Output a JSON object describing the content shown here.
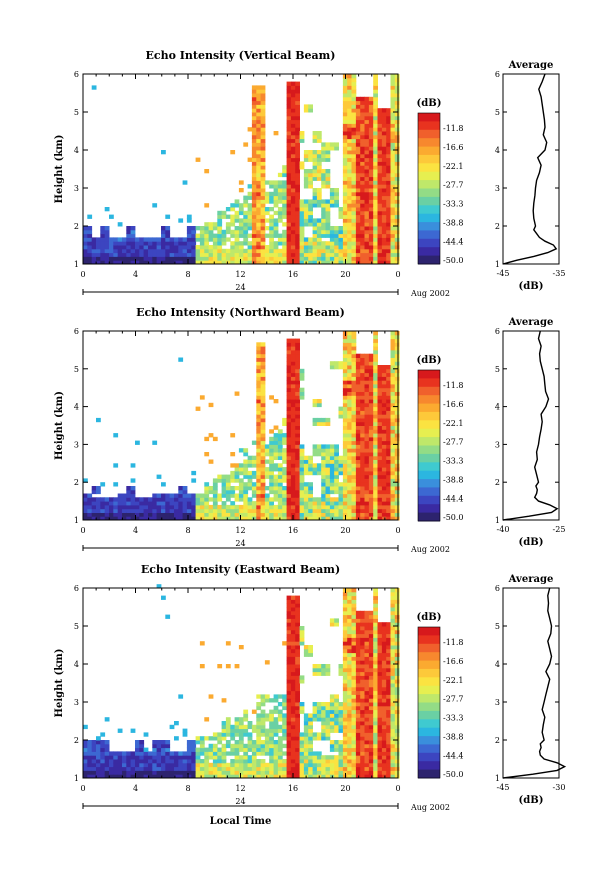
{
  "colorbar": {
    "unit": "(dB)",
    "labels": [
      "-11.8",
      "-16.6",
      "-22.1",
      "-27.7",
      "-33.3",
      "-38.8",
      "-44.4",
      "-50.0"
    ],
    "colors": [
      "#d7191c",
      "#e8331f",
      "#f0602c",
      "#f7882e",
      "#fbaa30",
      "#fdc93a",
      "#fbe341",
      "#e6ef50",
      "#bfe86a",
      "#93dc86",
      "#6ad0a4",
      "#3fcad0",
      "#2bb6e0",
      "#3a8fdc",
      "#3c68d2",
      "#3c45c0",
      "#3a2aa2",
      "#2d236e"
    ]
  },
  "footer": {
    "date": "Aug 2002",
    "xlabel": "Local Time"
  },
  "chart_data": [
    {
      "type": "heatmap",
      "title": "Echo Intensity (Vertical Beam)",
      "xlabel": "",
      "ylabel": "Height (km)",
      "xlim": [
        0,
        24
      ],
      "ylim": [
        1,
        6
      ],
      "xticks": [
        "0",
        "4",
        "8",
        "12",
        "16",
        "20",
        "0"
      ],
      "yticks": [
        "1",
        "2",
        "3",
        "4",
        "5",
        "6"
      ],
      "day_label": "24",
      "intensity_range_db": [
        -50.0,
        -11.8
      ],
      "profile": {
        "title": "Average",
        "xlabel": "(dB)",
        "xlim": [
          -45,
          -35
        ],
        "xticks": [
          "-45",
          "-35"
        ],
        "height": [
          1.0,
          1.1,
          1.2,
          1.3,
          1.4,
          1.5,
          1.6,
          1.7,
          1.8,
          1.9,
          2.0,
          2.2,
          2.4,
          2.6,
          2.8,
          3.0,
          3.2,
          3.4,
          3.6,
          3.8,
          4.0,
          4.2,
          4.4,
          4.6,
          4.8,
          5.0,
          5.2,
          5.4,
          5.6,
          5.8,
          6.0
        ],
        "value": [
          -45,
          -42.5,
          -39.5,
          -37,
          -35.5,
          -36,
          -37.5,
          -38.5,
          -39,
          -39.5,
          -39.2,
          -39.5,
          -39.6,
          -39.5,
          -39.3,
          -39.2,
          -39,
          -38.5,
          -38.2,
          -38.8,
          -37.5,
          -37.2,
          -37.8,
          -37.5,
          -37.6,
          -37.8,
          -38,
          -38.2,
          -38.6,
          -38,
          -37.5
        ]
      }
    },
    {
      "type": "heatmap",
      "title": "Echo Intensity (Northward Beam)",
      "xlabel": "",
      "ylabel": "Height (km)",
      "xlim": [
        0,
        24
      ],
      "ylim": [
        1,
        6
      ],
      "xticks": [
        "0",
        "4",
        "8",
        "12",
        "16",
        "20",
        "0"
      ],
      "yticks": [
        "1",
        "2",
        "3",
        "4",
        "5",
        "6"
      ],
      "day_label": "24",
      "intensity_range_db": [
        -50.0,
        -11.8
      ],
      "profile": {
        "title": "Average",
        "xlabel": "(dB)",
        "xlim": [
          -40,
          -25
        ],
        "xticks": [
          "-40",
          "-25"
        ],
        "height": [
          1.0,
          1.1,
          1.2,
          1.3,
          1.4,
          1.5,
          1.6,
          1.7,
          1.8,
          1.9,
          2.0,
          2.2,
          2.4,
          2.6,
          2.8,
          3.0,
          3.2,
          3.4,
          3.6,
          3.8,
          4.0,
          4.2,
          4.4,
          4.6,
          4.8,
          5.0,
          5.2,
          5.4,
          5.6,
          5.8,
          6.0
        ],
        "value": [
          -40,
          -33,
          -27,
          -25.5,
          -27.5,
          -30.5,
          -31.5,
          -31,
          -30.8,
          -31.2,
          -30.5,
          -31,
          -31.5,
          -30.8,
          -31,
          -30.5,
          -30.2,
          -29.8,
          -29.5,
          -29.8,
          -28.5,
          -27.8,
          -28.6,
          -28.8,
          -29,
          -29.5,
          -30,
          -30.2,
          -29.8,
          -30.5,
          -30
        ]
      }
    },
    {
      "type": "heatmap",
      "title": "Echo Intensity (Eastward Beam)",
      "xlabel": "Local Time",
      "ylabel": "Height (km)",
      "xlim": [
        0,
        24
      ],
      "ylim": [
        1,
        6
      ],
      "xticks": [
        "0",
        "4",
        "8",
        "12",
        "16",
        "20",
        "0"
      ],
      "yticks": [
        "1",
        "2",
        "3",
        "4",
        "5",
        "6"
      ],
      "day_label": "24",
      "intensity_range_db": [
        -50.0,
        -11.8
      ],
      "profile": {
        "title": "Average",
        "xlabel": "(dB)",
        "xlim": [
          -45,
          -30
        ],
        "xticks": [
          "-45",
          "-30"
        ],
        "height": [
          1.0,
          1.1,
          1.2,
          1.3,
          1.4,
          1.5,
          1.6,
          1.7,
          1.8,
          1.9,
          2.0,
          2.2,
          2.4,
          2.6,
          2.8,
          3.0,
          3.2,
          3.4,
          3.6,
          3.8,
          4.0,
          4.2,
          4.4,
          4.6,
          4.8,
          5.0,
          5.2,
          5.4,
          5.6,
          5.8,
          6.0
        ],
        "value": [
          -45,
          -37,
          -30.5,
          -28.5,
          -30.5,
          -34,
          -35,
          -35.2,
          -34.8,
          -35,
          -34,
          -34.5,
          -34.2,
          -33.8,
          -34.5,
          -34,
          -33.5,
          -33,
          -32.5,
          -33.5,
          -32.5,
          -32,
          -32.5,
          -33,
          -32.2,
          -32,
          -32.5,
          -33,
          -32.8,
          -33,
          -32.5
        ]
      }
    }
  ]
}
